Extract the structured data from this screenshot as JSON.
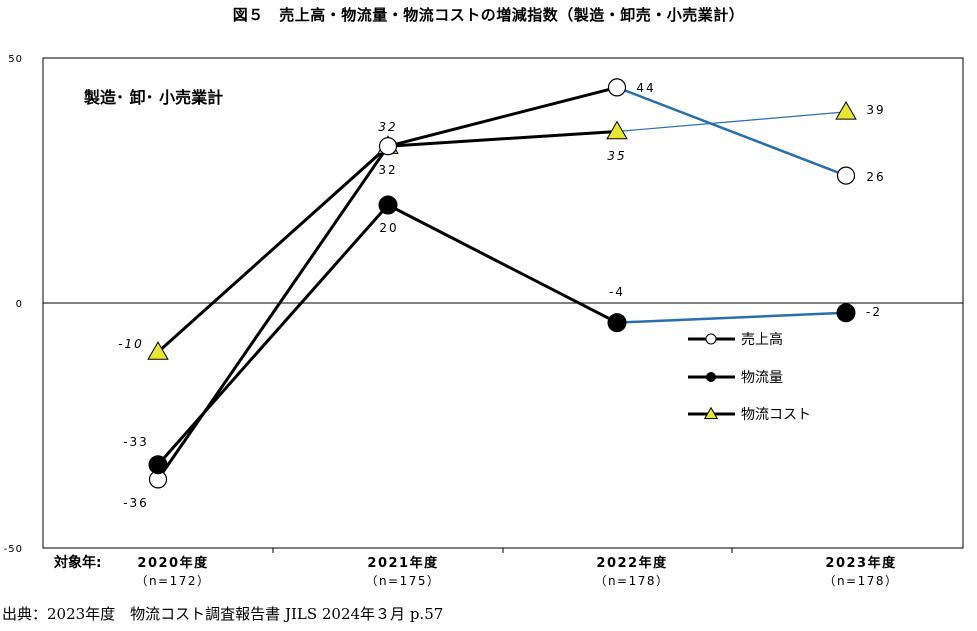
{
  "title": "図５　売上高・物流量・物流コストの増減指数（製造・卸売・小売業計）",
  "source": "出典：2023年度　物流コスト調査報告書 JILS 2024年３月 p.57",
  "chart_data": {
    "type": "line",
    "subtitle": "製造･ 卸･ 小売業計",
    "x_axis_prefix": "対象年:",
    "categories": [
      {
        "year": "2020年度",
        "n": "（n=172）"
      },
      {
        "year": "2021年度",
        "n": "（n=175）"
      },
      {
        "year": "2022年度",
        "n": "（n=178）"
      },
      {
        "year": "2023年度",
        "n": "（n=178）"
      }
    ],
    "ylim": [
      -50,
      50
    ],
    "yticks": [
      "50",
      "0",
      "-50"
    ],
    "legend_position": "right",
    "series": [
      {
        "name": "売上高",
        "marker": "open-circle",
        "values": [
          -36,
          32,
          44,
          26
        ],
        "labels": [
          "-36",
          "32",
          "44",
          "26"
        ]
      },
      {
        "name": "物流量",
        "marker": "filled-circle",
        "values": [
          -33,
          20,
          -4,
          -2
        ],
        "labels": [
          "-33",
          "20",
          "-4",
          "-2"
        ]
      },
      {
        "name": "物流コスト",
        "marker": "triangle",
        "values": [
          -10,
          32,
          35,
          39
        ],
        "labels": [
          "-10",
          "32",
          "35",
          "39"
        ]
      }
    ],
    "colors": {
      "line": "#000000",
      "recent_line": "#2a6fad",
      "triangle_fill": "#e8e632"
    }
  }
}
